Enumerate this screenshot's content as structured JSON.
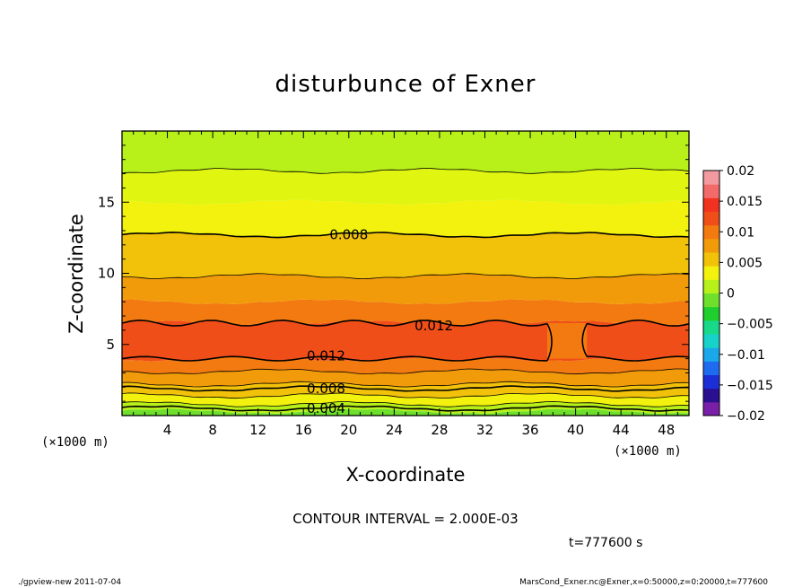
{
  "chart_data": {
    "type": "heatmap",
    "title": "disturbunce of Exner",
    "xlabel": "X-coordinate",
    "ylabel": "Z-coordinate",
    "x_unit_left": "(×1000 m)",
    "x_unit_right": "(×1000 m)",
    "xlim": [
      0,
      50
    ],
    "ylim": [
      0,
      20
    ],
    "x_ticks": [
      4,
      8,
      12,
      16,
      20,
      24,
      28,
      32,
      36,
      40,
      44,
      48
    ],
    "y_ticks": [
      5,
      10,
      15
    ],
    "contour_interval_text": "CONTOUR INTERVAL = 2.000E-03",
    "time_text": "t=777600 s",
    "colorbar": {
      "ticks": [
        "0.02",
        "0.015",
        "0.01",
        "0.005",
        "0",
        "−0.005",
        "−0.01",
        "−0.015",
        "−0.02"
      ],
      "min": -0.02,
      "max": 0.02,
      "colors": [
        "#7a1fa8",
        "#2a0f8f",
        "#1c2fd6",
        "#1f6bf0",
        "#1aa8ea",
        "#17d2c8",
        "#18d98a",
        "#1fcf2e",
        "#6ee02c",
        "#b8f01a",
        "#f2f20e",
        "#f2c20a",
        "#f29b0a",
        "#f27a10",
        "#f04e18",
        "#f23220",
        "#f26a6a",
        "#f39aa0"
      ]
    },
    "layers": [
      {
        "z": [
          0.0,
          0.3
        ],
        "value": 0.002,
        "color": "#6ee02c"
      },
      {
        "z": [
          0.3,
          0.8
        ],
        "value": 0.004,
        "color": "#b8f01a"
      },
      {
        "z": [
          0.8,
          1.4
        ],
        "value": 0.006,
        "color": "#f2f20e"
      },
      {
        "z": [
          1.4,
          2.2
        ],
        "value": 0.008,
        "color": "#f2c20a"
      },
      {
        "z": [
          2.2,
          3.1
        ],
        "value": 0.01,
        "color": "#f29b0a"
      },
      {
        "z": [
          3.1,
          4.0
        ],
        "value": 0.011,
        "color": "#f27a10"
      },
      {
        "z": [
          4.0,
          6.5
        ],
        "value": 0.012,
        "color": "#f04e18"
      },
      {
        "z": [
          6.5,
          8.0
        ],
        "value": 0.011,
        "color": "#f27a10"
      },
      {
        "z": [
          8.0,
          9.8
        ],
        "value": 0.01,
        "color": "#f29b0a"
      },
      {
        "z": [
          9.8,
          12.7
        ],
        "value": 0.009,
        "color": "#f2c20a"
      },
      {
        "z": [
          12.7,
          15.0
        ],
        "value": 0.007,
        "color": "#f2f20e"
      },
      {
        "z": [
          15.0,
          17.2
        ],
        "value": 0.006,
        "color": "#e0f510"
      },
      {
        "z": [
          17.2,
          20.0
        ],
        "value": 0.005,
        "color": "#b8f01a"
      }
    ],
    "contour_labels": [
      {
        "text": "0.008",
        "x": 20.0,
        "z": 12.7
      },
      {
        "text": "0.012",
        "x": 27.5,
        "z": 6.3
      },
      {
        "text": "0.012",
        "x": 18.0,
        "z": 4.2
      },
      {
        "text": "0.008",
        "x": 18.0,
        "z": 1.9
      },
      {
        "text": "0.004",
        "x": 18.0,
        "z": 0.5
      }
    ]
  },
  "footer": {
    "left": "./gpview-new   2011-07-04",
    "right": "MarsCond_Exner.nc@Exner,x=0:50000,z=0:20000,t=777600"
  }
}
